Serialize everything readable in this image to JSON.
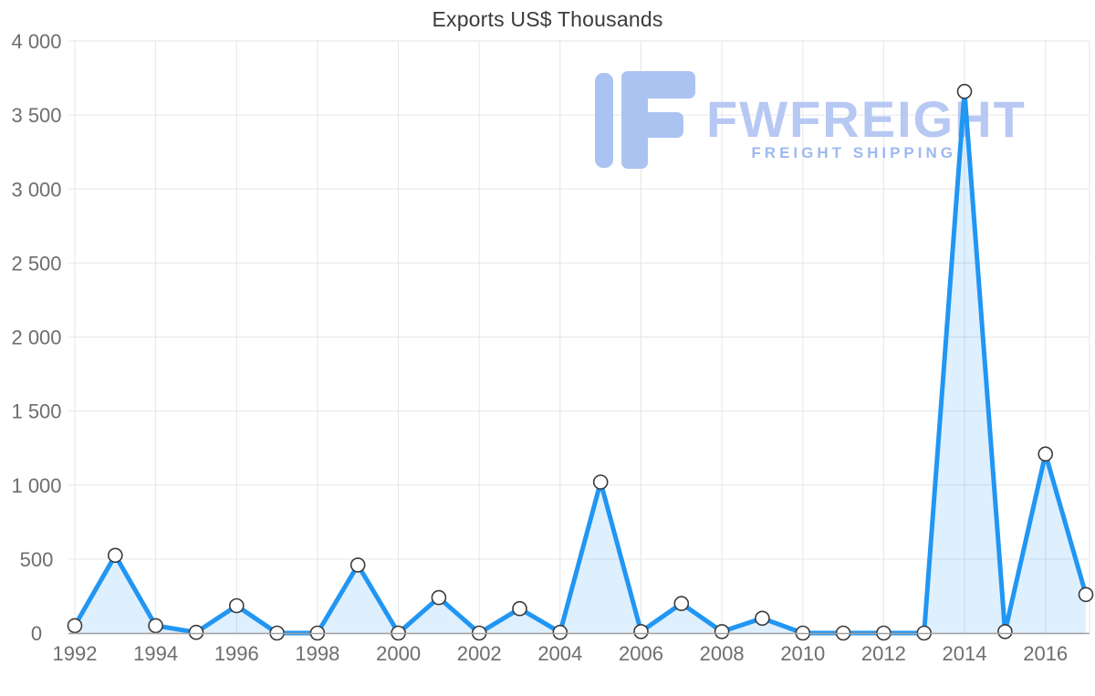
{
  "watermark": {
    "brand": "FWFREIGHT",
    "tagline": "FREIGHT SHIPPING",
    "brand_color": "#b7c8f3",
    "tagline_color": "#9eb9f0",
    "icon_color": "#abc3f1"
  },
  "chart_data": {
    "type": "area",
    "title": "Exports US$ Thousands",
    "xlabel": "",
    "ylabel": "",
    "x": [
      1992,
      1993,
      1994,
      1995,
      1996,
      1997,
      1998,
      1999,
      2000,
      2001,
      2002,
      2003,
      2004,
      2005,
      2006,
      2007,
      2008,
      2009,
      2010,
      2011,
      2012,
      2013,
      2014,
      2015,
      2016,
      2017
    ],
    "series": [
      {
        "name": "Exports US$ Thousands",
        "values": [
          50,
          525,
          50,
          5,
          185,
          0,
          0,
          460,
          0,
          240,
          0,
          165,
          5,
          1020,
          10,
          200,
          10,
          100,
          0,
          0,
          0,
          0,
          3660,
          10,
          1210,
          260
        ]
      }
    ],
    "ylim": [
      0,
      4000
    ],
    "yticks": [
      0,
      500,
      1000,
      1500,
      2000,
      2500,
      3000,
      3500,
      4000
    ],
    "ytick_labels": [
      "0",
      "500",
      "1 000",
      "1 500",
      "2 000",
      "2 500",
      "3 000",
      "3 500",
      "4 000"
    ],
    "xticks": [
      1992,
      1994,
      1996,
      1998,
      2000,
      2002,
      2004,
      2006,
      2008,
      2010,
      2012,
      2014,
      2016
    ],
    "grid": true,
    "legend": "none",
    "marker": "circle",
    "colors": {
      "line": "#2196f3",
      "fill": "#2196f3",
      "fill_opacity": 0.15,
      "marker_fill": "#ffffff",
      "marker_stroke": "#3a3a3a",
      "grid": "#e6e6e6",
      "axis": "#a2a2a2",
      "tick_text": "#6e6e6e",
      "title_text": "#3b3b3b"
    }
  }
}
